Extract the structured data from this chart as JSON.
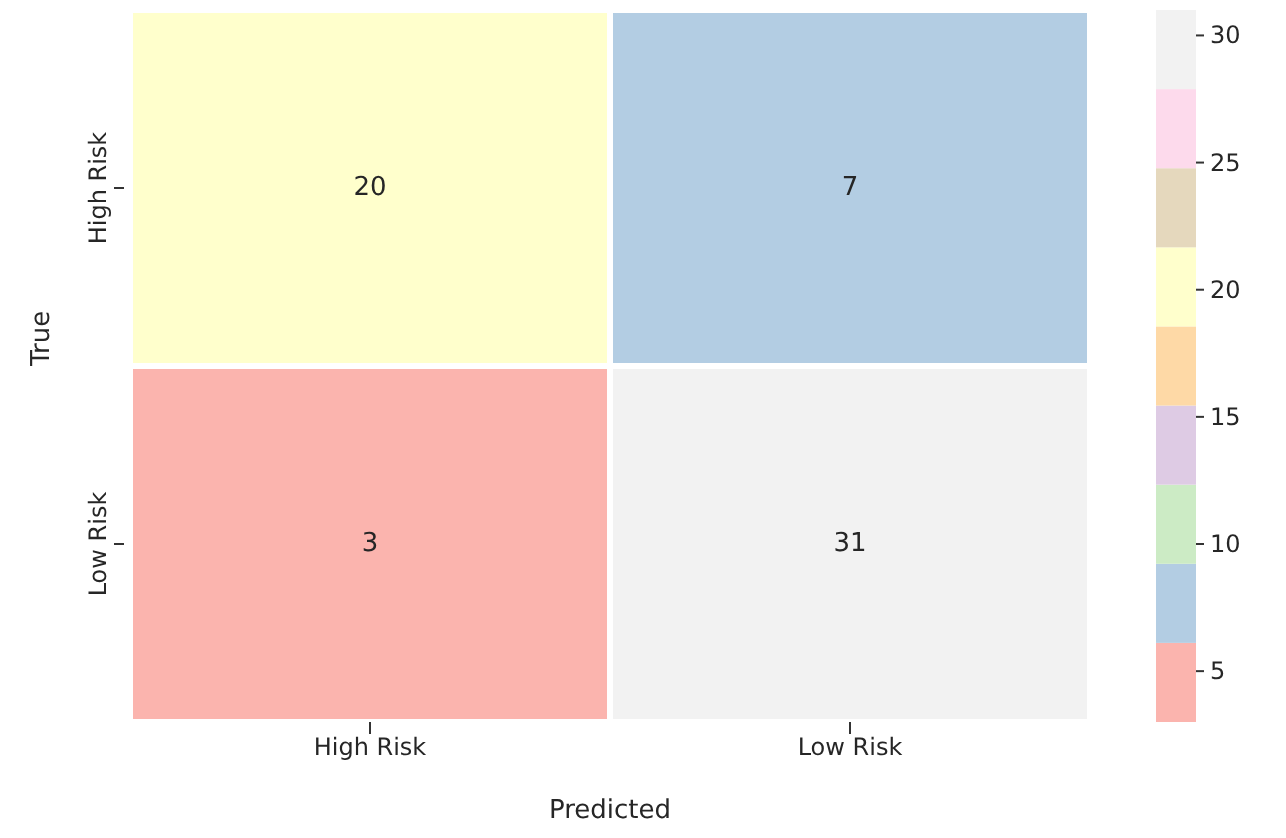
{
  "chart_data": {
    "type": "heatmap",
    "xlabel": "Predicted",
    "ylabel": "True",
    "categories": [
      "High Risk",
      "Low Risk"
    ],
    "y_categories": [
      "High Risk",
      "Low Risk"
    ],
    "cells": [
      [
        20,
        7
      ],
      [
        3,
        31
      ]
    ],
    "data_labels": true,
    "clim": [
      3,
      31
    ],
    "cticks": [
      5,
      10,
      15,
      20,
      25,
      30
    ]
  }
}
